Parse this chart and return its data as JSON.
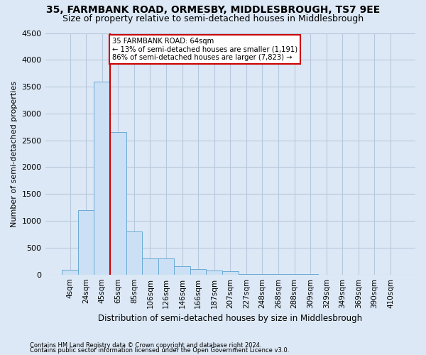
{
  "title": "35, FARMBANK ROAD, ORMESBY, MIDDLESBROUGH, TS7 9EE",
  "subtitle": "Size of property relative to semi-detached houses in Middlesbrough",
  "xlabel": "Distribution of semi-detached houses by size in Middlesbrough",
  "ylabel": "Number of semi-detached properties",
  "footer_line1": "Contains HM Land Registry data © Crown copyright and database right 2024.",
  "footer_line2": "Contains public sector information licensed under the Open Government Licence v3.0.",
  "categories": [
    "4sqm",
    "24sqm",
    "45sqm",
    "65sqm",
    "85sqm",
    "106sqm",
    "126sqm",
    "146sqm",
    "166sqm",
    "187sqm",
    "207sqm",
    "227sqm",
    "248sqm",
    "268sqm",
    "288sqm",
    "309sqm",
    "329sqm",
    "349sqm",
    "369sqm",
    "390sqm",
    "410sqm"
  ],
  "values": [
    85,
    1200,
    3600,
    2650,
    800,
    300,
    300,
    150,
    100,
    75,
    60,
    10,
    8,
    5,
    4,
    3,
    2,
    2,
    1,
    1,
    1
  ],
  "bar_color": "#cce0f5",
  "bar_edge_color": "#6aaad4",
  "property_line_index": 2,
  "annotation_text_line1": "35 FARMBANK ROAD: 64sqm",
  "annotation_text_line2": "← 13% of semi-detached houses are smaller (1,191)",
  "annotation_text_line3": "86% of semi-detached houses are larger (7,823) →",
  "annotation_box_color": "#ffffff",
  "annotation_box_edge_color": "#cc0000",
  "red_line_color": "#cc0000",
  "ylim": [
    0,
    4500
  ],
  "yticks": [
    0,
    500,
    1000,
    1500,
    2000,
    2500,
    3000,
    3500,
    4000,
    4500
  ],
  "grid_color": "#b8c8dc",
  "background_color": "#dce8f5",
  "title_fontsize": 10,
  "subtitle_fontsize": 9
}
